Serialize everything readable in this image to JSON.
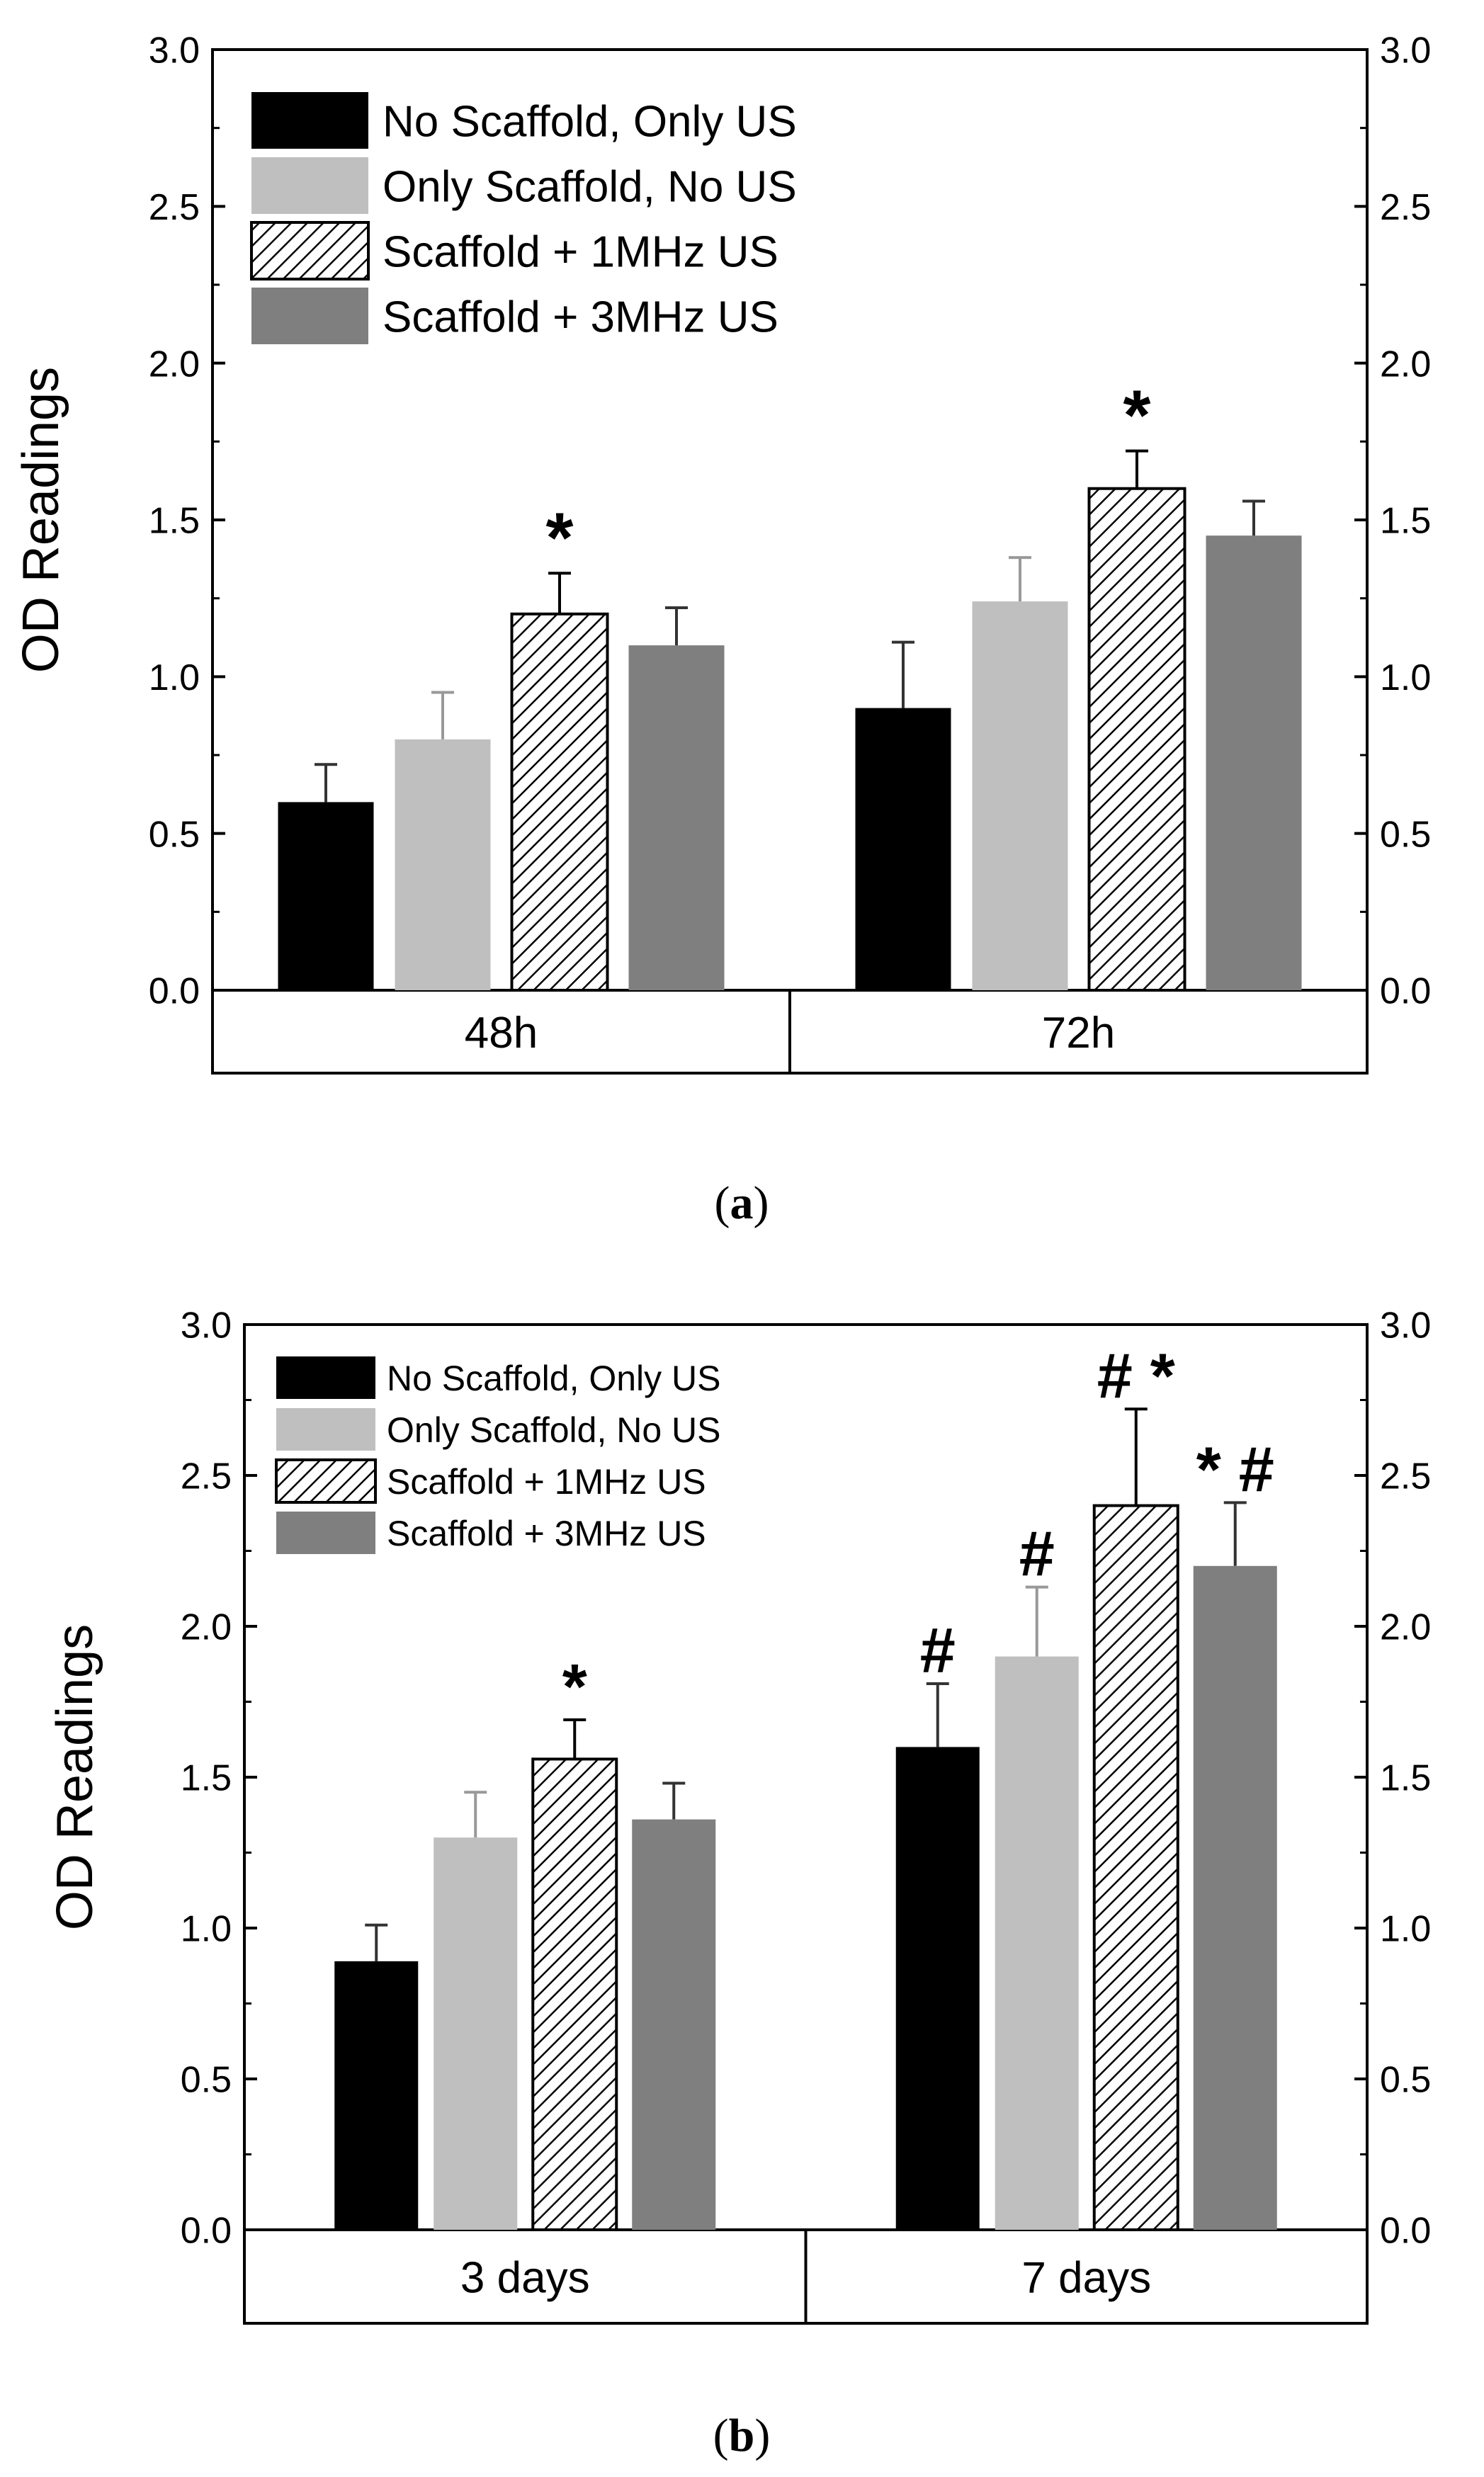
{
  "chart_data": [
    {
      "type": "bar",
      "panel_label": "(a)",
      "panel_letter": "a",
      "ylabel": "OD Readings",
      "ylim": [
        0,
        3
      ],
      "yticks": [
        "0.0",
        "0.5",
        "1.0",
        "1.5",
        "2.0",
        "2.5",
        "3.0"
      ],
      "right_axis": true,
      "categories": [
        "48h",
        "72h"
      ],
      "legend_position": "top-left",
      "series": [
        {
          "name": "No Scaffold, Only  US",
          "color": "#000000",
          "pattern": "solid",
          "values": [
            0.6,
            0.9
          ],
          "errors": [
            0.12,
            0.21
          ],
          "markers": [
            "",
            ""
          ]
        },
        {
          "name": "Only Scaffold, No US",
          "color": "#bfbfbf",
          "pattern": "solid",
          "values": [
            0.8,
            1.24
          ],
          "errors": [
            0.15,
            0.14
          ],
          "markers": [
            "",
            ""
          ]
        },
        {
          "name": "Scaffold + 1MHz US",
          "color": "#ffffff",
          "pattern": "hatch",
          "values": [
            1.2,
            1.6
          ],
          "errors": [
            0.13,
            0.12
          ],
          "markers": [
            "*",
            "*"
          ]
        },
        {
          "name": "Scaffold + 3MHz US",
          "color": "#7f7f7f",
          "pattern": "solid",
          "values": [
            1.1,
            1.45
          ],
          "errors": [
            0.12,
            0.11
          ],
          "markers": [
            "",
            ""
          ]
        }
      ]
    },
    {
      "type": "bar",
      "panel_label": "(b)",
      "panel_letter": "b",
      "ylabel": "OD Readings",
      "ylim": [
        0,
        3
      ],
      "yticks": [
        "0.0",
        "0.5",
        "1.0",
        "1.5",
        "2.0",
        "2.5",
        "3.0"
      ],
      "right_axis": true,
      "categories": [
        "3 days",
        "7 days"
      ],
      "legend_position": "top-left",
      "series": [
        {
          "name": "No Scaffold, Only  US",
          "color": "#000000",
          "pattern": "solid",
          "values": [
            0.89,
            1.6
          ],
          "errors": [
            0.12,
            0.21
          ],
          "markers": [
            "",
            "#"
          ]
        },
        {
          "name": "Only Scaffold, No US",
          "color": "#bfbfbf",
          "pattern": "solid",
          "values": [
            1.3,
            1.9
          ],
          "errors": [
            0.15,
            0.23
          ],
          "markers": [
            "",
            "#"
          ]
        },
        {
          "name": "Scaffold + 1MHz US",
          "color": "#ffffff",
          "pattern": "hatch",
          "values": [
            1.56,
            2.4
          ],
          "errors": [
            0.13,
            0.32
          ],
          "markers": [
            "*",
            "# *"
          ]
        },
        {
          "name": "Scaffold + 3MHz US",
          "color": "#7f7f7f",
          "pattern": "solid",
          "values": [
            1.36,
            2.2
          ],
          "errors": [
            0.12,
            0.21
          ],
          "markers": [
            "",
            "* #"
          ]
        }
      ]
    }
  ]
}
